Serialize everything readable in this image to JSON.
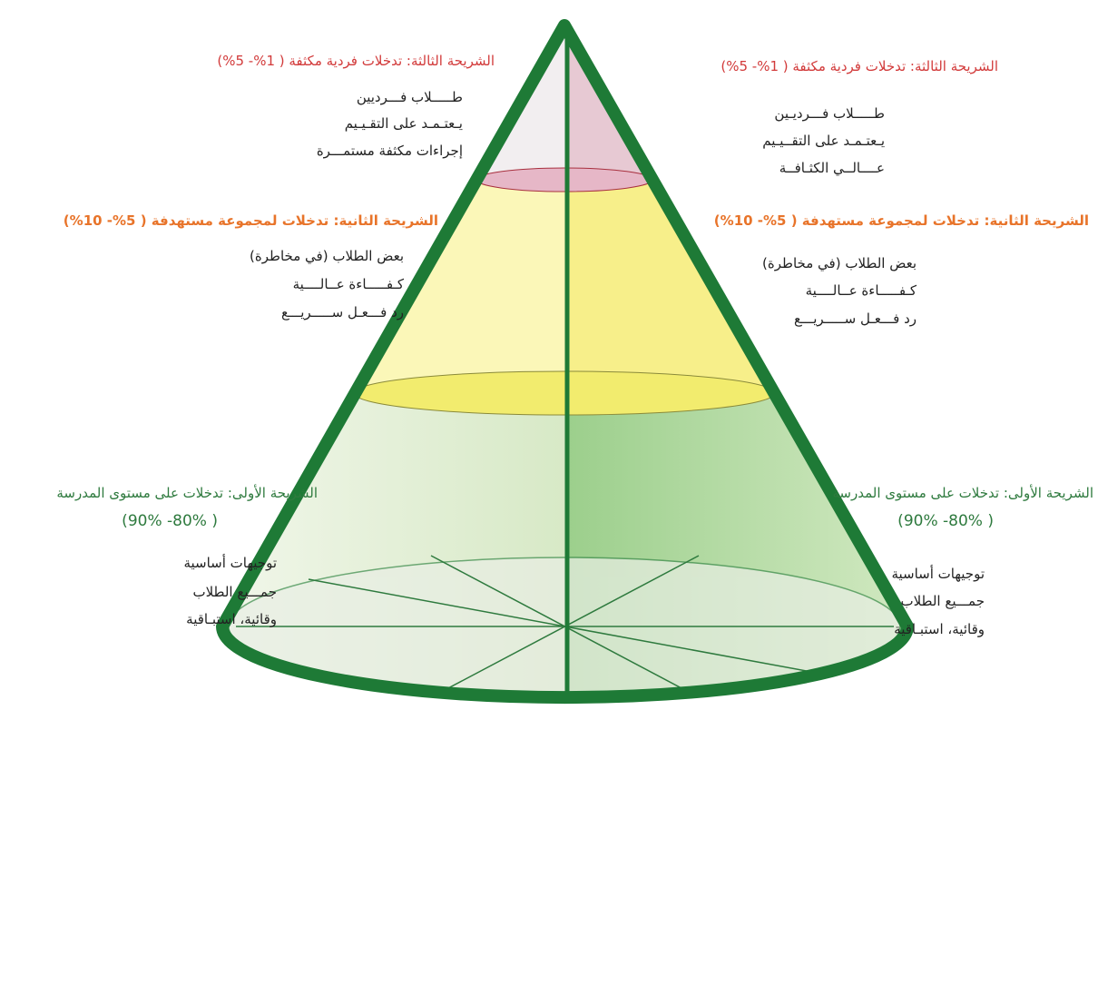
{
  "sides": [
    {
      "tiers": [
        {
          "heading": "الشريحة الثالثة: تدخلات فردية مكثفة ( 1%-  5%)",
          "lines": [
            "طـــــلاب فـــرديين",
            "يـعتـمـد على التقـيـيم",
            "إجراءات مكثفة مستمـــرة"
          ]
        },
        {
          "heading": "الشريحة الثانية: تدخلات لمجموعة مستهدفة ( 5%-  10%)",
          "lines": [
            "بعض الطلاب  (في مخاطرة)",
            "كـفـــــاءة عــالــــية",
            "رد فـــعـل ســـــريـــع"
          ]
        },
        {
          "heading": "الشريحة الأولى: تدخلات على مستوى المدرسة",
          "percent": "( 80%-  90%)",
          "lines": [
            "توجيهات أساسية",
            "جمـــيع الطلاب",
            "وقائية، استبـاقية"
          ]
        }
      ]
    },
    {
      "tiers": [
        {
          "heading": "الشريحة الثالثة: تدخلات فردية مكثفة ( 1%-  5%)",
          "lines": [
            "طـــــلاب فـــرديـين",
            "يـعتـمـد على التقــيـيم",
            "عــــالــي الكثـافــة"
          ]
        },
        {
          "heading": "الشريحة الثانية: تدخلات لمجموعة مستهدفة ( 5%-  10%)",
          "lines": [
            "بعض الطلاب (في مخاطرة)",
            "كـفـــــاءة عــالــــية",
            "رد فـــعـل ســـــريـــع"
          ]
        },
        {
          "heading": "الشريحة الأولى: تدخلات على مستوى المدرسة",
          "percent": "( 80%-  90%)",
          "lines": [
            "توجيهات أساسية",
            "جمـــيع الطلاب",
            "وقائية، استبـاقية"
          ]
        }
      ]
    }
  ]
}
